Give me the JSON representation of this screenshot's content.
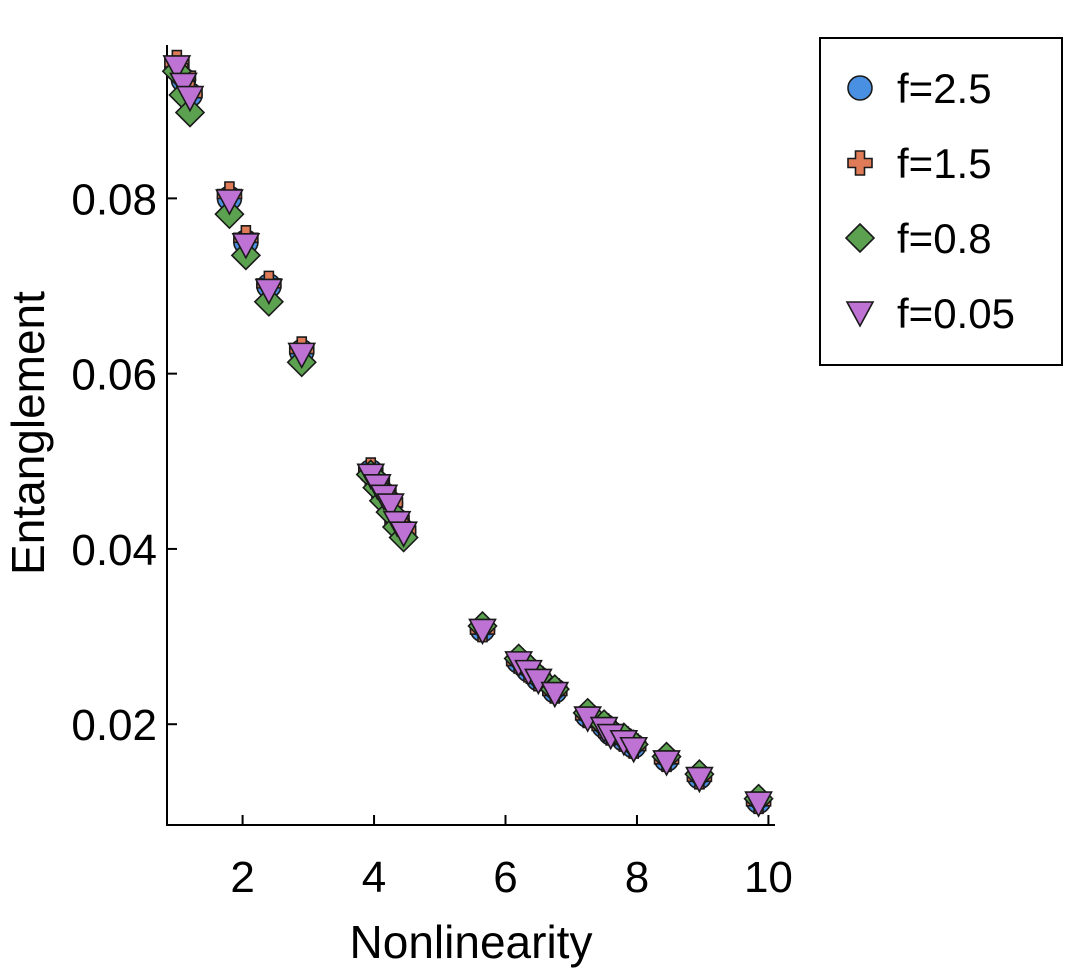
{
  "chart_data": {
    "type": "scatter",
    "title": "",
    "xlabel": "Nonlinearity",
    "ylabel": "Entanglement",
    "xlim": [
      0.85,
      10.1
    ],
    "ylim": [
      0.0085,
      0.0975
    ],
    "xticks": [
      2,
      4,
      6,
      8,
      10
    ],
    "xtick_labels": [
      "2",
      "4",
      "6",
      "8",
      "10"
    ],
    "yticks": [
      0.02,
      0.04,
      0.06,
      0.08
    ],
    "ytick_labels": [
      "0.02",
      "0.04",
      "0.06",
      "0.08"
    ],
    "grid": false,
    "legend_position": "top-right (outside plot)",
    "series": [
      {
        "name": "f=2.5",
        "marker": "circle",
        "color": "#4a90e2",
        "x": [
          1.0,
          1.1,
          1.2,
          1.8,
          2.05,
          2.4,
          2.9,
          3.95,
          4.05,
          4.15,
          4.25,
          4.35,
          4.45,
          5.65,
          6.2,
          6.35,
          6.5,
          6.75,
          7.25,
          7.5,
          7.6,
          7.8,
          7.95,
          8.45,
          8.95,
          9.85
        ],
        "y": [
          0.0948,
          0.0935,
          0.0918,
          0.08,
          0.075,
          0.07,
          0.0625,
          0.0488,
          0.0475,
          0.0462,
          0.0452,
          0.0432,
          0.042,
          0.0308,
          0.0272,
          0.0262,
          0.0252,
          0.0238,
          0.021,
          0.0198,
          0.019,
          0.0183,
          0.0175,
          0.016,
          0.014,
          0.0112
        ]
      },
      {
        "name": "f=1.5",
        "marker": "cross",
        "color": "#e07b58",
        "x": [
          1.0,
          1.1,
          1.2,
          1.8,
          2.05,
          2.4,
          2.9,
          3.95,
          4.05,
          4.15,
          4.25,
          4.35,
          4.45,
          5.65,
          6.2,
          6.35,
          6.5,
          6.75,
          7.25,
          7.5,
          7.6,
          7.8,
          7.95,
          8.45,
          8.95,
          9.85
        ],
        "y": [
          0.0955,
          0.094,
          0.092,
          0.0805,
          0.0755,
          0.0703,
          0.0628,
          0.049,
          0.0477,
          0.0464,
          0.0453,
          0.0433,
          0.0421,
          0.0308,
          0.0272,
          0.0262,
          0.0252,
          0.0238,
          0.021,
          0.0198,
          0.019,
          0.0183,
          0.0175,
          0.016,
          0.014,
          0.0112
        ]
      },
      {
        "name": "f=0.8",
        "marker": "diamond",
        "color": "#5ba150",
        "x": [
          1.0,
          1.1,
          1.2,
          1.8,
          2.05,
          2.4,
          2.9,
          3.95,
          4.05,
          4.15,
          4.25,
          4.35,
          4.45,
          5.65,
          6.2,
          6.35,
          6.5,
          6.75,
          7.25,
          7.5,
          7.6,
          7.8,
          7.95,
          8.45,
          8.95,
          9.85
        ],
        "y": [
          0.0945,
          0.0918,
          0.0898,
          0.0782,
          0.0735,
          0.0682,
          0.0613,
          0.0485,
          0.047,
          0.0455,
          0.0442,
          0.0425,
          0.0413,
          0.0312,
          0.0275,
          0.0265,
          0.0254,
          0.024,
          0.0213,
          0.02,
          0.0192,
          0.0185,
          0.0177,
          0.0163,
          0.0143,
          0.0115
        ]
      },
      {
        "name": "f=0.05",
        "marker": "triangle-down",
        "color": "#bd72d4",
        "x": [
          1.0,
          1.1,
          1.2,
          1.8,
          2.05,
          2.4,
          2.9,
          3.95,
          4.05,
          4.15,
          4.25,
          4.35,
          4.45,
          5.65,
          6.2,
          6.35,
          6.5,
          6.75,
          7.25,
          7.5,
          7.6,
          7.8,
          7.95,
          8.45,
          8.95,
          9.85
        ],
        "y": [
          0.095,
          0.093,
          0.0915,
          0.0797,
          0.0747,
          0.0695,
          0.0622,
          0.0484,
          0.0472,
          0.046,
          0.045,
          0.043,
          0.0418,
          0.0307,
          0.027,
          0.026,
          0.025,
          0.0235,
          0.0207,
          0.0195,
          0.0187,
          0.018,
          0.0172,
          0.0157,
          0.0138,
          0.011
        ]
      }
    ]
  }
}
